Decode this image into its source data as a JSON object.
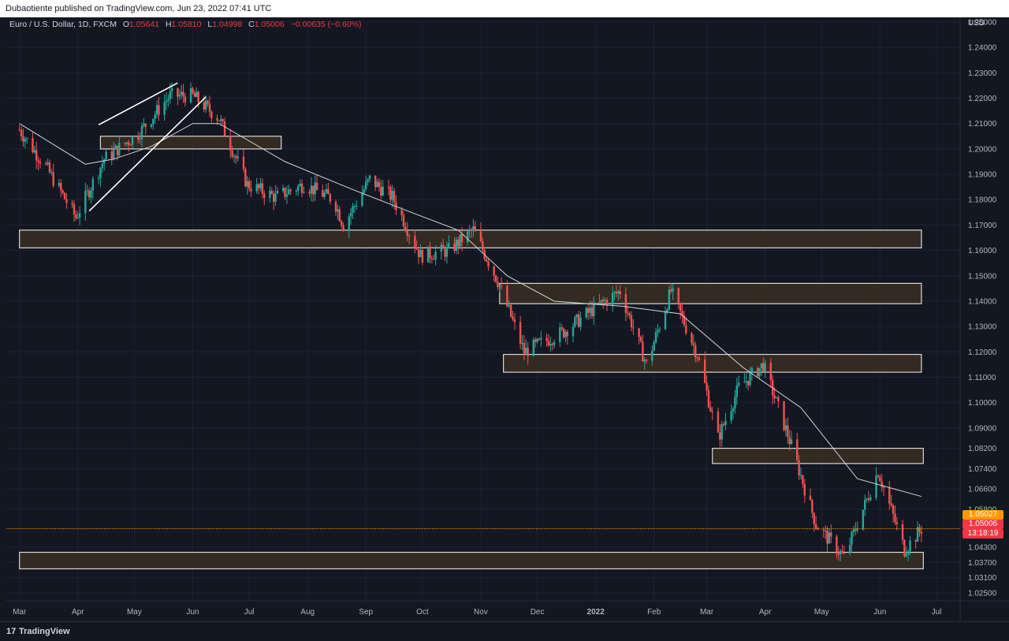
{
  "header": {
    "published_by": "Dubaotiente published on TradingView.com, Jun 23, 2022 07:41 UTC"
  },
  "legend": {
    "symbol": "Euro / U.S. Dollar, 1D, FXCM",
    "open_label": "O",
    "open": "1.05641",
    "high_label": "H",
    "high": "1.05810",
    "low_label": "L",
    "low": "1.04998",
    "close_label": "C",
    "close": "1.05006",
    "change": "−0.00635 (−0.60%)"
  },
  "price_axis": {
    "currency": "USD",
    "ticks": [
      "1.25000",
      "1.24000",
      "1.23000",
      "1.22000",
      "1.21000",
      "1.20000",
      "1.19000",
      "1.18000",
      "1.17000",
      "1.16000",
      "1.15000",
      "1.14000",
      "1.13000",
      "1.12000",
      "1.11000",
      "1.10000",
      "1.09000",
      "1.08200",
      "1.07400",
      "1.06600",
      "1.05800",
      "1.04300",
      "1.03700",
      "1.03100",
      "1.02500"
    ]
  },
  "time_axis": {
    "labels": [
      "Mar",
      "Apr",
      "May",
      "Jun",
      "Jul",
      "Aug",
      "Sep",
      "Oct",
      "Nov",
      "Dec",
      "2022",
      "Feb",
      "Mar",
      "Apr",
      "May",
      "Jun",
      "Jul"
    ]
  },
  "price_labels": {
    "bid": "1.05027",
    "last": "1.05006",
    "countdown": "13:18:19"
  },
  "colors": {
    "background": "#131722",
    "up": "#26a69a",
    "down": "#ef5350",
    "zone_fill": "#3a2e21",
    "zone_border": "#d9d9d9",
    "ma": "#d1d4dc",
    "bid_line": "#ff9800",
    "last_label": "#f23645"
  },
  "chart_data": {
    "type": "candlestick",
    "instrument": "Euro / U.S. Dollar",
    "timeframe": "1D",
    "x_range": [
      "2021-03",
      "2022-07"
    ],
    "ylim": [
      1.025,
      1.25
    ],
    "approx_daily_closes": [
      [
        "2021-03-01",
        1.2075
      ],
      [
        "2021-03-15",
        1.193
      ],
      [
        "2021-03-31",
        1.173
      ],
      [
        "2021-04-15",
        1.196
      ],
      [
        "2021-05-03",
        1.206
      ],
      [
        "2021-05-20",
        1.221
      ],
      [
        "2021-06-01",
        1.221
      ],
      [
        "2021-06-15",
        1.212
      ],
      [
        "2021-06-30",
        1.186
      ],
      [
        "2021-07-15",
        1.181
      ],
      [
        "2021-07-30",
        1.186
      ],
      [
        "2021-08-15",
        1.18
      ],
      [
        "2021-08-20",
        1.17
      ],
      [
        "2021-09-03",
        1.188
      ],
      [
        "2021-09-15",
        1.181
      ],
      [
        "2021-09-30",
        1.158
      ],
      [
        "2021-10-15",
        1.16
      ],
      [
        "2021-10-28",
        1.168
      ],
      [
        "2021-11-10",
        1.148
      ],
      [
        "2021-11-24",
        1.12
      ],
      [
        "2021-12-15",
        1.128
      ],
      [
        "2021-12-31",
        1.137
      ],
      [
        "2022-01-14",
        1.144
      ],
      [
        "2022-01-28",
        1.115
      ],
      [
        "2022-02-10",
        1.144
      ],
      [
        "2022-02-24",
        1.119
      ],
      [
        "2022-03-07",
        1.086
      ],
      [
        "2022-03-18",
        1.106
      ],
      [
        "2022-03-31",
        1.115
      ],
      [
        "2022-04-15",
        1.083
      ],
      [
        "2022-04-28",
        1.052
      ],
      [
        "2022-05-13",
        1.039
      ],
      [
        "2022-05-31",
        1.073
      ],
      [
        "2022-06-14",
        1.042
      ],
      [
        "2022-06-23",
        1.0501
      ]
    ],
    "moving_average": {
      "approx_points": [
        [
          "2021-03-01",
          1.21
        ],
        [
          "2021-04-05",
          1.194
        ],
        [
          "2021-04-20",
          1.196
        ],
        [
          "2021-05-10",
          1.201
        ],
        [
          "2021-06-01",
          1.21
        ],
        [
          "2021-06-15",
          1.21
        ],
        [
          "2021-07-20",
          1.195
        ],
        [
          "2021-08-25",
          1.184
        ],
        [
          "2021-09-25",
          1.175
        ],
        [
          "2021-10-20",
          1.168
        ],
        [
          "2021-11-15",
          1.15
        ],
        [
          "2021-12-10",
          1.14
        ],
        [
          "2022-01-15",
          1.138
        ],
        [
          "2022-02-15",
          1.135
        ],
        [
          "2022-03-20",
          1.114
        ],
        [
          "2022-04-20",
          1.098
        ],
        [
          "2022-05-20",
          1.07
        ],
        [
          "2022-06-23",
          1.063
        ]
      ]
    },
    "zones": [
      {
        "from": "2021-04-13",
        "to": "2021-07-18",
        "low": 1.2,
        "high": 1.205
      },
      {
        "from": "2021-03-01",
        "to": "2022-06-23",
        "low": 1.161,
        "high": 1.168
      },
      {
        "from": "2021-11-11",
        "to": "2022-06-23",
        "low": 1.139,
        "high": 1.147
      },
      {
        "from": "2021-11-13",
        "to": "2022-06-23",
        "low": 1.112,
        "high": 1.119
      },
      {
        "from": "2022-03-04",
        "to": "2022-06-24",
        "low": 1.076,
        "high": 1.082
      },
      {
        "from": "2021-03-01",
        "to": "2022-06-24",
        "low": 1.0345,
        "high": 1.041
      }
    ],
    "trendlines": [
      {
        "from": [
          "2021-04-07",
          1.1755
        ],
        "to": [
          "2021-06-08",
          1.2205
        ]
      },
      {
        "from": [
          "2021-04-12",
          1.2095
        ],
        "to": [
          "2021-05-24",
          1.226
        ]
      }
    ],
    "bid_price": 1.05027,
    "last_price": 1.05006
  }
}
